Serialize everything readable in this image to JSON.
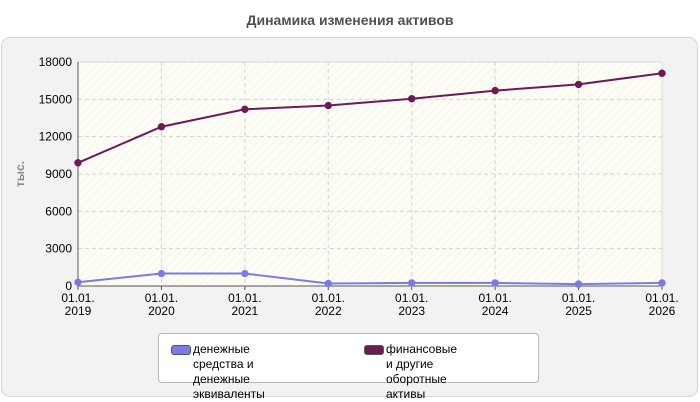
{
  "chart_data": {
    "type": "line",
    "title": "Динамика изменения активов",
    "ylabel": "тыс.",
    "xlabel": "",
    "ylim": [
      0,
      18000
    ],
    "yticks": [
      0,
      3000,
      6000,
      9000,
      12000,
      15000,
      18000
    ],
    "categories": [
      "01.01.\n2019",
      "01.01.\n2020",
      "01.01.\n2021",
      "01.01.\n2022",
      "01.01.\n2023",
      "01.01.\n2024",
      "01.01.\n2025",
      "01.01.\n2026"
    ],
    "series": [
      {
        "name": "денежные средства и\nденежные эквиваленты",
        "color": "#7b7be8",
        "values": [
          300,
          1000,
          1000,
          200,
          250,
          250,
          150,
          250
        ]
      },
      {
        "name": "финансовые и другие\nоборотные активы",
        "color": "#6d1a55",
        "values": [
          9900,
          12800,
          14200,
          14500,
          15050,
          15700,
          16200,
          17100
        ]
      }
    ],
    "grid": true,
    "legend_position": "bottom-center"
  }
}
